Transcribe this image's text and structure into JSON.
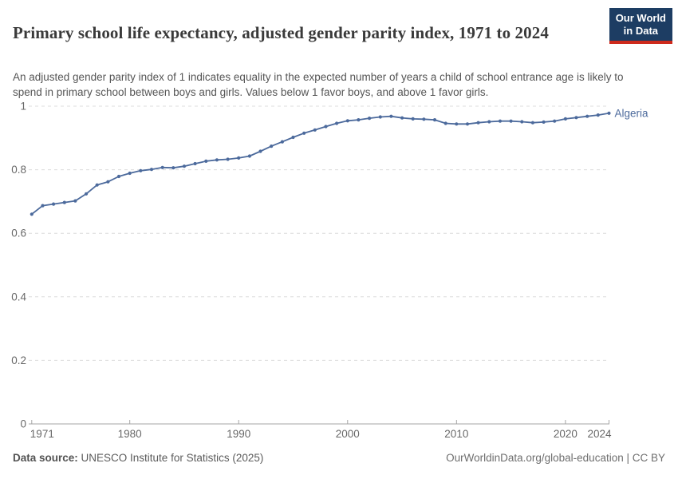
{
  "header": {
    "title": "Primary school life expectancy, adjusted gender parity index, 1971 to 2024",
    "subtitle": "An adjusted gender parity index of 1 indicates equality in the expected number of years a child of school entrance age is likely to spend in primary school between boys and girls. Values below 1 favor boys, and above 1 favor girls.",
    "logo": {
      "line1": "Our World",
      "line2": "in Data"
    }
  },
  "chart_data": {
    "type": "line",
    "title": "Primary school life expectancy, adjusted gender parity index, 1971 to 2024",
    "xlabel": "",
    "ylabel": "",
    "xlim": [
      1971,
      2024
    ],
    "ylim": [
      0,
      1
    ],
    "grid": "horizontal-dashed",
    "legend_position": "end-of-line",
    "x_ticks": [
      1971,
      1980,
      1990,
      2000,
      2010,
      2020,
      2024
    ],
    "y_ticks": [
      "0",
      "0.2",
      "0.4",
      "0.6",
      "0.8",
      "1"
    ],
    "series": [
      {
        "name": "Algeria",
        "color": "#4C6A9C",
        "x": [
          1971,
          1972,
          1973,
          1974,
          1975,
          1976,
          1977,
          1978,
          1979,
          1980,
          1981,
          1982,
          1983,
          1984,
          1985,
          1986,
          1987,
          1988,
          1989,
          1990,
          1991,
          1992,
          1993,
          1994,
          1995,
          1996,
          1997,
          1998,
          1999,
          2000,
          2001,
          2002,
          2003,
          2004,
          2005,
          2006,
          2007,
          2008,
          2009,
          2010,
          2011,
          2012,
          2013,
          2014,
          2015,
          2016,
          2017,
          2018,
          2019,
          2020,
          2021,
          2022,
          2023,
          2024
        ],
        "values": [
          0.66,
          0.687,
          0.692,
          0.697,
          0.702,
          0.724,
          0.752,
          0.762,
          0.779,
          0.789,
          0.797,
          0.801,
          0.807,
          0.806,
          0.811,
          0.819,
          0.827,
          0.831,
          0.833,
          0.837,
          0.843,
          0.858,
          0.874,
          0.888,
          0.902,
          0.915,
          0.925,
          0.936,
          0.946,
          0.954,
          0.957,
          0.962,
          0.966,
          0.968,
          0.963,
          0.96,
          0.959,
          0.957,
          0.946,
          0.944,
          0.944,
          0.948,
          0.951,
          0.953,
          0.953,
          0.951,
          0.948,
          0.95,
          0.953,
          0.96,
          0.964,
          0.968,
          0.972,
          0.978
        ]
      }
    ]
  },
  "footer": {
    "source_label": "Data source:",
    "source_text": " UNESCO Institute for Statistics (2025)",
    "credit": "OurWorldinData.org/global-education | CC BY"
  },
  "colors": {
    "line": "#4C6A9C",
    "logo_navy": "#1D3D63",
    "logo_red": "#CE2A1D",
    "grid": "#DCDCDC",
    "axis": "#A5A5A5",
    "tick_label": "#686868",
    "title": "#3A3A3A",
    "subtitle": "#555555",
    "footer": "#5B5B5B"
  }
}
